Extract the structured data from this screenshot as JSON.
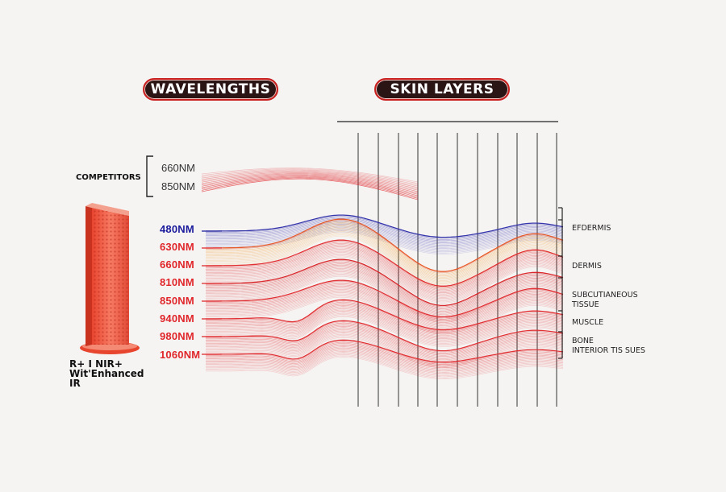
{
  "headers": {
    "wavelengths": "WAVELENGTHS",
    "skin_layers": "SKIN LAYERS"
  },
  "competitors": {
    "label": "COMPETITORS",
    "wavelengths": [
      "660NM",
      "850NM"
    ]
  },
  "wavelengths": [
    {
      "label": "480NM",
      "color": "#1a1a9c"
    },
    {
      "label": "630NM",
      "color": "#e0262a"
    },
    {
      "label": "660NM",
      "color": "#e0262a"
    },
    {
      "label": "810NM",
      "color": "#e0262a"
    },
    {
      "label": "850NM",
      "color": "#e0262a"
    },
    {
      "label": "940NM",
      "color": "#e0262a"
    },
    {
      "label": "980NM",
      "color": "#e0262a"
    },
    {
      "label": "1060NM",
      "color": "#e0262a"
    }
  ],
  "skin_layers": [
    {
      "lines": [
        "EFDERMIS"
      ]
    },
    {
      "lines": [
        "DERMIS"
      ]
    },
    {
      "lines": [
        "SUBCUTIANEOUS",
        "TISSUE"
      ]
    },
    {
      "lines": [
        "MUSCLE"
      ]
    },
    {
      "lines": [
        "BONE",
        "INTERIOR TIS SUES"
      ]
    }
  ],
  "device": {
    "caption_lines": [
      "R+ I NIR+",
      "Wit'Enhanced",
      "IR"
    ]
  },
  "colors": {
    "accent_red": "#e0262a",
    "blue": "#1a1a9c",
    "pill_bg": "#2a1414",
    "device": "#ef5a48"
  }
}
